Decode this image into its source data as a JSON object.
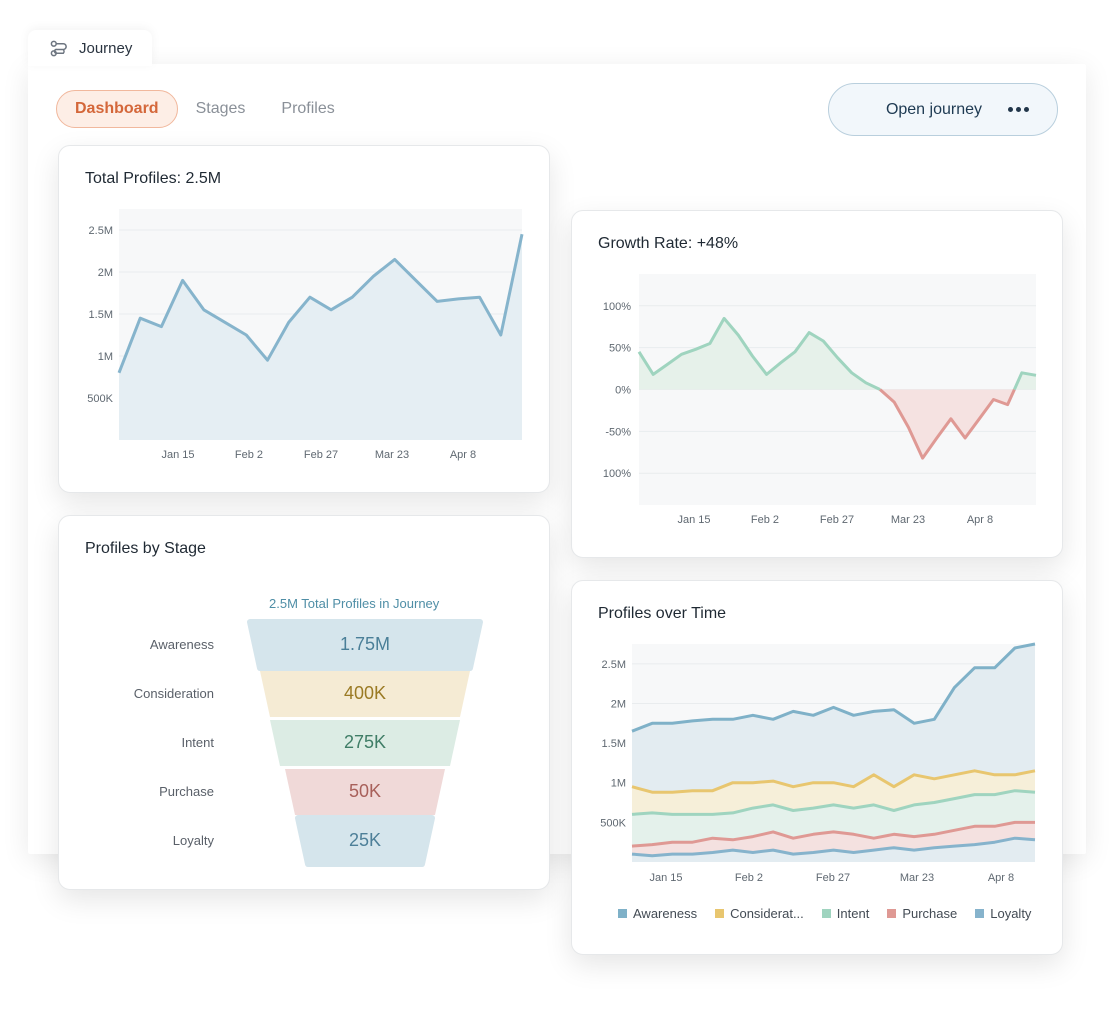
{
  "window": {
    "tab_label": "Journey",
    "tab_icon": "route-icon"
  },
  "nav": {
    "tabs": [
      {
        "label": "Dashboard",
        "active": true
      },
      {
        "label": "Stages",
        "active": false
      },
      {
        "label": "Profiles",
        "active": false
      }
    ],
    "open_journey_label": "Open journey",
    "more_icon": "more-horizontal-icon"
  },
  "colors": {
    "accent": "#d4673a",
    "awareness": "#7fb1c8",
    "consideration": "#e8c66f",
    "intent": "#9fd4bf",
    "purchase": "#df9994",
    "loyalty": "#86b3cc",
    "growth_positive": "#9fd4bf",
    "growth_negative": "#df9994"
  },
  "cards": {
    "total_profiles": {
      "title": "Total Profiles: 2.5M"
    },
    "growth_rate": {
      "title": "Growth Rate: +48%"
    },
    "profiles_by_stage": {
      "title": "Profiles by Stage"
    },
    "profiles_over_time": {
      "title": "Profiles over Time"
    }
  },
  "chart_data": [
    {
      "id": "total_profiles",
      "type": "area",
      "title": "Total Profiles: 2.5M",
      "x_ticks": [
        "Jan 15",
        "Feb 2",
        "Feb 27",
        "Mar 23",
        "Apr 8"
      ],
      "y_ticks": [
        "500K",
        "1M",
        "1.5M",
        "2M",
        "2.5M"
      ],
      "ylim": [
        0,
        2.75
      ],
      "series": [
        {
          "name": "Total Profiles",
          "values": [
            0.8,
            1.45,
            1.35,
            1.9,
            1.55,
            1.4,
            1.25,
            0.95,
            1.4,
            1.7,
            1.55,
            1.7,
            1.95,
            2.15,
            1.9,
            1.65,
            1.68,
            1.7,
            1.25,
            2.45
          ]
        }
      ]
    },
    {
      "id": "growth_rate",
      "type": "area",
      "title": "Growth Rate: +48%",
      "x_ticks": [
        "Jan 15",
        "Feb 2",
        "Feb 27",
        "Mar 23",
        "Apr 8"
      ],
      "y_ticks": [
        "100%",
        "50%",
        "0%",
        "-50%",
        "100%"
      ],
      "ylim": [
        -138,
        138
      ],
      "series": [
        {
          "name": "Growth Rate",
          "values": [
            45,
            18,
            30,
            42,
            48,
            55,
            85,
            65,
            40,
            18,
            32,
            45,
            68,
            58,
            38,
            20,
            8,
            0,
            -15,
            -45,
            -82,
            -58,
            -35,
            -58,
            -35,
            -12,
            -18,
            20,
            17
          ]
        }
      ]
    },
    {
      "id": "profiles_by_stage",
      "type": "funnel",
      "title": "Profiles by Stage",
      "total_label": "2.5M Total Profiles in Journey",
      "stages": [
        {
          "name": "Awareness",
          "display": "1.75M",
          "value": 1750000
        },
        {
          "name": "Consideration",
          "display": "400K",
          "value": 400000
        },
        {
          "name": "Intent",
          "display": "275K",
          "value": 275000
        },
        {
          "name": "Purchase",
          "display": "50K",
          "value": 50000
        },
        {
          "name": "Loyalty",
          "display": "25K",
          "value": 25000
        }
      ]
    },
    {
      "id": "profiles_over_time",
      "type": "area",
      "title": "Profiles over Time",
      "x_ticks": [
        "Jan 15",
        "Feb 2",
        "Feb 27",
        "Mar 23",
        "Apr 8"
      ],
      "y_ticks": [
        "500K",
        "1M",
        "1.5M",
        "2M",
        "2.5M"
      ],
      "ylim": [
        0,
        2.75
      ],
      "series": [
        {
          "name": "Awareness",
          "values": [
            1.65,
            1.75,
            1.75,
            1.78,
            1.8,
            1.8,
            1.85,
            1.8,
            1.9,
            1.85,
            1.95,
            1.85,
            1.9,
            1.92,
            1.75,
            1.8,
            2.2,
            2.45,
            2.45,
            2.7,
            2.75
          ]
        },
        {
          "name": "Consideration",
          "values": [
            0.95,
            0.88,
            0.88,
            0.9,
            0.9,
            1.0,
            1.0,
            1.02,
            0.95,
            1.0,
            1.0,
            0.95,
            1.1,
            0.95,
            1.1,
            1.05,
            1.1,
            1.15,
            1.1,
            1.1,
            1.15
          ]
        },
        {
          "name": "Intent",
          "values": [
            0.6,
            0.62,
            0.6,
            0.6,
            0.6,
            0.62,
            0.68,
            0.72,
            0.65,
            0.68,
            0.72,
            0.68,
            0.72,
            0.65,
            0.72,
            0.75,
            0.8,
            0.85,
            0.85,
            0.9,
            0.88
          ]
        },
        {
          "name": "Purchase",
          "values": [
            0.2,
            0.22,
            0.25,
            0.25,
            0.3,
            0.28,
            0.32,
            0.38,
            0.3,
            0.35,
            0.38,
            0.35,
            0.3,
            0.35,
            0.32,
            0.35,
            0.4,
            0.45,
            0.45,
            0.5,
            0.5
          ]
        },
        {
          "name": "Loyalty",
          "values": [
            0.1,
            0.08,
            0.1,
            0.1,
            0.12,
            0.15,
            0.12,
            0.15,
            0.1,
            0.12,
            0.15,
            0.12,
            0.15,
            0.18,
            0.15,
            0.18,
            0.2,
            0.22,
            0.25,
            0.3,
            0.28
          ]
        }
      ],
      "legend": [
        "Awareness",
        "Considerat...",
        "Intent",
        "Purchase",
        "Loyalty"
      ]
    }
  ]
}
